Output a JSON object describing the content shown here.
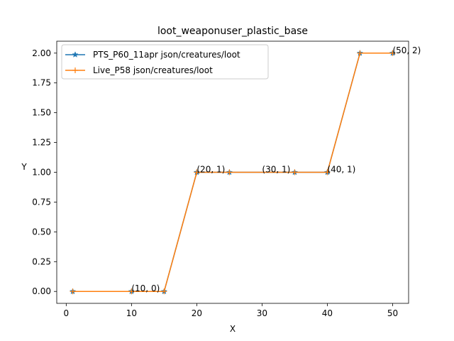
{
  "chart_data": {
    "type": "line",
    "title": "loot_weaponuser_plastic_base",
    "xlabel": "X",
    "ylabel": "Y",
    "xlim": [
      -1.45,
      52.45
    ],
    "ylim": [
      -0.1,
      2.1
    ],
    "xticks": [
      0,
      10,
      20,
      30,
      40,
      50
    ],
    "yticks": [
      0.0,
      0.25,
      0.5,
      0.75,
      1.0,
      1.25,
      1.5,
      1.75,
      2.0
    ],
    "ytick_labels": [
      "0.00",
      "0.25",
      "0.50",
      "0.75",
      "1.00",
      "1.25",
      "1.50",
      "1.75",
      "2.00"
    ],
    "grid": false,
    "legend_position": "upper-left",
    "series": [
      {
        "name": "PTS_P60_11apr json/creatures/loot",
        "color": "#1f77b4",
        "marker": "star",
        "x": [
          1,
          10,
          15,
          20,
          25,
          35,
          40,
          45,
          50
        ],
        "y": [
          0,
          0,
          0,
          1,
          1,
          1,
          1,
          2,
          2
        ]
      },
      {
        "name": "Live_P58 json/creatures/loot",
        "color": "#ff7f0e",
        "marker": "plus",
        "x": [
          1,
          10,
          15,
          20,
          25,
          35,
          40,
          45,
          50
        ],
        "y": [
          0,
          0,
          0,
          1,
          1,
          1,
          1,
          2,
          2
        ]
      }
    ],
    "annotations": [
      {
        "text": "(10, 0)",
        "x": 10,
        "y": 0
      },
      {
        "text": "(20, 1)",
        "x": 20,
        "y": 1
      },
      {
        "text": "(30, 1)",
        "x": 30,
        "y": 1
      },
      {
        "text": "(40, 1)",
        "x": 40,
        "y": 1
      },
      {
        "text": "(50, 2)",
        "x": 50,
        "y": 2
      }
    ]
  }
}
